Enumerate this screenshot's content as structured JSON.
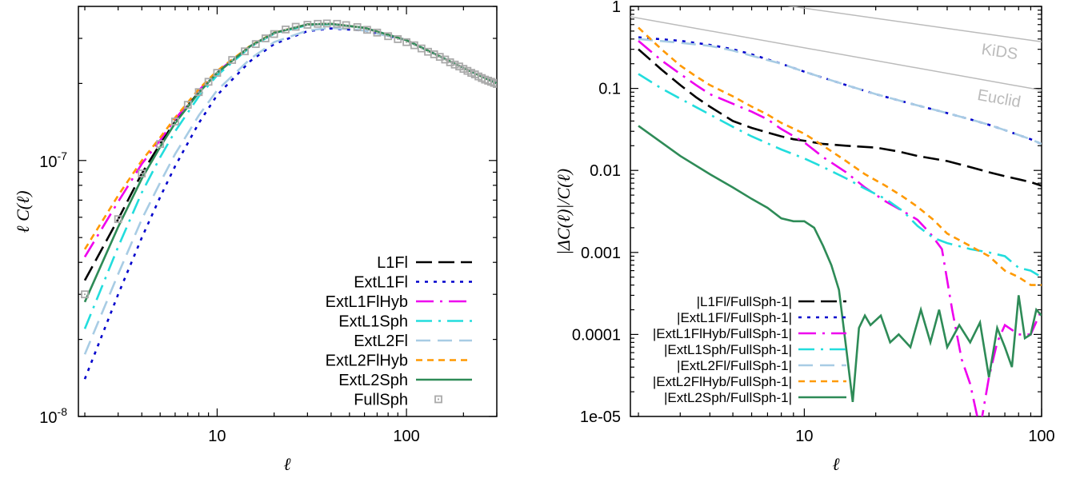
{
  "chart_data": [
    {
      "type": "line",
      "xlabel": "ℓ",
      "ylabel": "ℓ C(ℓ)",
      "xscale": "log",
      "yscale": "log",
      "xlim": [
        1.85,
        300
      ],
      "ylim": [
        1e-08,
        4e-07
      ],
      "xticks": [
        {
          "v": 10,
          "label": "10"
        },
        {
          "v": 100,
          "label": "100"
        }
      ],
      "yticks": [
        {
          "v": 1e-07,
          "base": "10",
          "exp": "-7"
        },
        {
          "v": 1e-08,
          "base": "10",
          "exp": "-8"
        }
      ],
      "legend_position": "bottom-right",
      "grid": false,
      "series": [
        {
          "name": "L1Fl",
          "color": "#000000",
          "dash": "20,8",
          "width": 2.6,
          "x": [
            2,
            3,
            4,
            5,
            6,
            8,
            10,
            15,
            20,
            30,
            40,
            60,
            100,
            150,
            200,
            300
          ],
          "y": [
            3.4e-08,
            5.9e-08,
            8.9e-08,
            1.16e-07,
            1.42e-07,
            1.85e-07,
            2.2e-07,
            2.8e-07,
            3.15e-07,
            3.4e-07,
            3.42e-07,
            3.3e-07,
            2.95e-07,
            2.55e-07,
            2.3e-07,
            2e-07
          ]
        },
        {
          "name": "ExtL1Fl",
          "color": "#0000cc",
          "dash": "4,7",
          "width": 2.6,
          "x": [
            2,
            3,
            4,
            5,
            6,
            8,
            10,
            15,
            20,
            30,
            40,
            60,
            100,
            150,
            200,
            300
          ],
          "y": [
            1.4e-08,
            3e-08,
            5e-08,
            7.2e-08,
            9.5e-08,
            1.4e-07,
            1.8e-07,
            2.45e-07,
            2.85e-07,
            3.2e-07,
            3.28e-07,
            3.22e-07,
            2.95e-07,
            2.55e-07,
            2.3e-07,
            2e-07
          ]
        },
        {
          "name": "ExtL1FlHyb",
          "color": "#ee00ee",
          "dash": "22,8,3,8",
          "width": 2.6,
          "x": [
            2,
            3,
            4,
            5,
            6,
            8,
            10,
            15,
            20,
            30,
            40,
            60,
            100,
            150,
            200,
            300
          ],
          "y": [
            4.2e-08,
            6.9e-08,
            9.7e-08,
            1.2e-07,
            1.45e-07,
            1.88e-07,
            2.22e-07,
            2.8e-07,
            3.15e-07,
            3.4e-07,
            3.42e-07,
            3.3e-07,
            2.95e-07,
            2.55e-07,
            2.3e-07,
            2e-07
          ]
        },
        {
          "name": "ExtL1Sph",
          "color": "#22dddd",
          "dash": "20,8,3,8",
          "width": 2.6,
          "x": [
            2,
            3,
            4,
            5,
            6,
            8,
            10,
            15,
            20,
            30,
            40,
            60,
            100,
            150,
            200,
            300
          ],
          "y": [
            2.2e-08,
            4.6e-08,
            7.5e-08,
            1.03e-07,
            1.3e-07,
            1.78e-07,
            2.15e-07,
            2.78e-07,
            3.13e-07,
            3.38e-07,
            3.41e-07,
            3.3e-07,
            2.95e-07,
            2.55e-07,
            2.3e-07,
            2e-07
          ]
        },
        {
          "name": "ExtL2Fl",
          "color": "#a8cce4",
          "dash": "18,9",
          "width": 2.6,
          "x": [
            2,
            3,
            4,
            5,
            6,
            8,
            10,
            15,
            20,
            30,
            40,
            60,
            100,
            150,
            200,
            300
          ],
          "y": [
            1.75e-08,
            3.6e-08,
            5.9e-08,
            8.2e-08,
            1.06e-07,
            1.5e-07,
            1.88e-07,
            2.5e-07,
            2.9e-07,
            3.22e-07,
            3.3e-07,
            3.22e-07,
            2.95e-07,
            2.55e-07,
            2.3e-07,
            2e-07
          ]
        },
        {
          "name": "ExtL2FlHyb",
          "color": "#ff9900",
          "dash": "8,6",
          "width": 2.6,
          "x": [
            2,
            3,
            4,
            5,
            6,
            8,
            10,
            15,
            20,
            30,
            40,
            60,
            100,
            150,
            200,
            300
          ],
          "y": [
            4.5e-08,
            7.3e-08,
            1e-07,
            1.23e-07,
            1.47e-07,
            1.9e-07,
            2.24e-07,
            2.81e-07,
            3.16e-07,
            3.4e-07,
            3.42e-07,
            3.3e-07,
            2.95e-07,
            2.55e-07,
            2.3e-07,
            2e-07
          ]
        },
        {
          "name": "ExtL2Sph",
          "color": "#2e8b57",
          "dash": "",
          "width": 2.6,
          "x": [
            2,
            3,
            4,
            5,
            6,
            8,
            10,
            15,
            20,
            30,
            40,
            60,
            100,
            150,
            200,
            300
          ],
          "y": [
            2.8e-08,
            5.5e-08,
            8.5e-08,
            1.13e-07,
            1.4e-07,
            1.84e-07,
            2.2e-07,
            2.8e-07,
            3.15e-07,
            3.4e-07,
            3.42e-07,
            3.3e-07,
            2.95e-07,
            2.55e-07,
            2.3e-07,
            2e-07
          ]
        },
        {
          "name": "FullSph",
          "color": "#aaaaaa",
          "marker": "square-dot",
          "x": [
            2,
            3,
            4,
            5,
            6,
            7,
            8,
            9,
            10,
            12,
            14,
            16,
            18,
            20,
            23,
            26,
            30,
            34,
            38,
            43,
            48,
            55,
            62,
            70,
            80,
            90,
            100,
            110,
            120,
            130,
            140,
            150,
            160,
            170,
            180,
            190,
            200,
            210,
            220,
            230,
            240,
            250,
            260,
            270,
            280,
            290,
            300
          ],
          "y": [
            3e-08,
            5.9e-08,
            8.9e-08,
            1.16e-07,
            1.42e-07,
            1.65e-07,
            1.85e-07,
            2.03e-07,
            2.2e-07,
            2.47e-07,
            2.67e-07,
            2.85e-07,
            3e-07,
            3.12e-07,
            3.25e-07,
            3.33e-07,
            3.39e-07,
            3.42e-07,
            3.43e-07,
            3.42e-07,
            3.38e-07,
            3.32e-07,
            3.24e-07,
            3.16e-07,
            3.06e-07,
            2.98e-07,
            2.9e-07,
            2.82e-07,
            2.74e-07,
            2.66e-07,
            2.6e-07,
            2.54e-07,
            2.48e-07,
            2.42e-07,
            2.37e-07,
            2.33e-07,
            2.28e-07,
            2.24e-07,
            2.2e-07,
            2.17e-07,
            2.13e-07,
            2.1e-07,
            2.07e-07,
            2.05e-07,
            2.03e-07,
            2.01e-07,
            1.99e-07
          ]
        }
      ]
    },
    {
      "type": "line",
      "xlabel": "ℓ",
      "ylabel": "|ΔC(ℓ)|/C(ℓ)",
      "xscale": "log",
      "yscale": "log",
      "xlim": [
        1.85,
        100
      ],
      "ylim": [
        1e-05,
        1
      ],
      "xticks": [
        {
          "v": 10,
          "label": "10"
        },
        {
          "v": 100,
          "label": "100"
        }
      ],
      "yticks": [
        {
          "v": 1,
          "label": "1"
        },
        {
          "v": 0.1,
          "label": "0.1"
        },
        {
          "v": 0.01,
          "label": "0.01"
        },
        {
          "v": 0.001,
          "label": "0.001"
        },
        {
          "v": 0.0001,
          "label": "0.0001"
        },
        {
          "v": 1e-05,
          "label": "1e-05"
        }
      ],
      "legend_position": "bottom-left",
      "grid": false,
      "reference_lines": [
        {
          "name": "KiDS",
          "color": "#bbbbbb",
          "x": [
            1.85,
            100
          ],
          "y": [
            1.9,
            0.37
          ]
        },
        {
          "name": "Euclid",
          "color": "#bbbbbb",
          "x": [
            1.85,
            100
          ],
          "y": [
            0.75,
            0.095
          ]
        }
      ],
      "series": [
        {
          "name": "|L1Fl/FullSph-1|",
          "color": "#000000",
          "dash": "20,8",
          "width": 2.6,
          "x": [
            2,
            2.5,
            3,
            3.5,
            4,
            5,
            6,
            7,
            8,
            9,
            10,
            12,
            15,
            20,
            25,
            30,
            40,
            50,
            60,
            70,
            80,
            90,
            100
          ],
          "y": [
            0.3,
            0.17,
            0.11,
            0.078,
            0.06,
            0.04,
            0.033,
            0.029,
            0.026,
            0.024,
            0.023,
            0.021,
            0.02,
            0.019,
            0.017,
            0.015,
            0.013,
            0.011,
            0.0095,
            0.0085,
            0.0078,
            0.0072,
            0.0065
          ]
        },
        {
          "name": "|ExtL1Fl/FullSph-1|",
          "color": "#0000cc",
          "dash": "4,7",
          "width": 2.6,
          "x": [
            2,
            3,
            4,
            5,
            6,
            8,
            10,
            15,
            20,
            30,
            40,
            50,
            60,
            70,
            80,
            90,
            100
          ],
          "y": [
            0.42,
            0.38,
            0.34,
            0.3,
            0.26,
            0.2,
            0.16,
            0.11,
            0.085,
            0.062,
            0.05,
            0.042,
            0.036,
            0.031,
            0.027,
            0.024,
            0.021
          ]
        },
        {
          "name": "|ExtL1FlHyb/FullSph-1|",
          "color": "#ee00ee",
          "dash": "22,8,3,8",
          "width": 2.6,
          "x": [
            2,
            2.5,
            3,
            3.5,
            4,
            5,
            6,
            7,
            8,
            10,
            12,
            15,
            18,
            22,
            26,
            30,
            34,
            38,
            42,
            46,
            50,
            55,
            60,
            65,
            70,
            80,
            90,
            100
          ],
          "y": [
            0.38,
            0.22,
            0.15,
            0.11,
            0.085,
            0.065,
            0.052,
            0.042,
            0.032,
            0.022,
            0.0145,
            0.0095,
            0.0062,
            0.0042,
            0.0032,
            0.0025,
            0.0017,
            0.0011,
            0.0002,
            5e-05,
            2.5e-05,
            7e-06,
            3e-05,
            8e-05,
            0.00013,
            0.0001,
            0.0001,
            0.0002
          ]
        },
        {
          "name": "|ExtL1Sph/FullSph-1|",
          "color": "#22dddd",
          "dash": "20,8,3,8",
          "width": 2.6,
          "x": [
            2,
            2.5,
            3,
            4,
            5,
            6,
            8,
            10,
            12,
            15,
            18,
            22,
            26,
            30,
            35,
            40,
            50,
            60,
            70,
            80,
            90,
            100
          ],
          "y": [
            0.15,
            0.1,
            0.075,
            0.048,
            0.034,
            0.026,
            0.018,
            0.014,
            0.011,
            0.008,
            0.006,
            0.0045,
            0.0032,
            0.0021,
            0.0015,
            0.0013,
            0.0011,
            0.001,
            0.0009,
            0.00065,
            0.0006,
            0.0005
          ]
        },
        {
          "name": "|ExtL2Fl/FullSph-1|",
          "color": "#a8cce4",
          "dash": "18,9",
          "width": 2.6,
          "x": [
            2,
            3,
            4,
            5,
            6,
            8,
            10,
            15,
            20,
            30,
            40,
            50,
            60,
            70,
            80,
            90,
            100
          ],
          "y": [
            0.4,
            0.36,
            0.33,
            0.29,
            0.25,
            0.2,
            0.16,
            0.11,
            0.085,
            0.062,
            0.05,
            0.042,
            0.036,
            0.031,
            0.027,
            0.024,
            0.021
          ]
        },
        {
          "name": "|ExtL2FlHyb/FullSph-1|",
          "color": "#ff9900",
          "dash": "8,6",
          "width": 2.6,
          "x": [
            2,
            2.5,
            3,
            3.5,
            4,
            5,
            6,
            7,
            8,
            10,
            12,
            15,
            18,
            22,
            26,
            30,
            35,
            40,
            50,
            60,
            70,
            80,
            90,
            100
          ],
          "y": [
            0.55,
            0.3,
            0.19,
            0.14,
            0.11,
            0.08,
            0.06,
            0.048,
            0.038,
            0.028,
            0.02,
            0.013,
            0.009,
            0.0065,
            0.0048,
            0.0036,
            0.0025,
            0.0017,
            0.0012,
            0.0009,
            0.0006,
            0.0005,
            0.0004,
            0.0004
          ]
        },
        {
          "name": "|ExtL2Sph/FullSph-1|",
          "color": "#2e8b57",
          "dash": "",
          "width": 2.6,
          "x": [
            2,
            3,
            4,
            5,
            6,
            7,
            8,
            9,
            10,
            11,
            12,
            13,
            14,
            15,
            16,
            17,
            18,
            19,
            21,
            23,
            25,
            28,
            31,
            34,
            37,
            40,
            45,
            50,
            55,
            60,
            65,
            70,
            75,
            80,
            85,
            90,
            95,
            100
          ],
          "y": [
            0.035,
            0.015,
            0.009,
            0.0062,
            0.0045,
            0.0035,
            0.0026,
            0.0024,
            0.0024,
            0.002,
            0.0012,
            0.0007,
            0.00035,
            7e-05,
            1.5e-05,
            0.00012,
            0.00017,
            0.00013,
            0.00017,
            8e-05,
            0.0001,
            7e-05,
            0.0002,
            8e-05,
            0.0002,
            7e-05,
            0.00013,
            8e-05,
            0.00014,
            3e-05,
            0.00012,
            7e-05,
            4e-05,
            0.0003,
            9e-05,
            0.0001,
            0.0002,
            0.00017
          ]
        }
      ]
    }
  ]
}
